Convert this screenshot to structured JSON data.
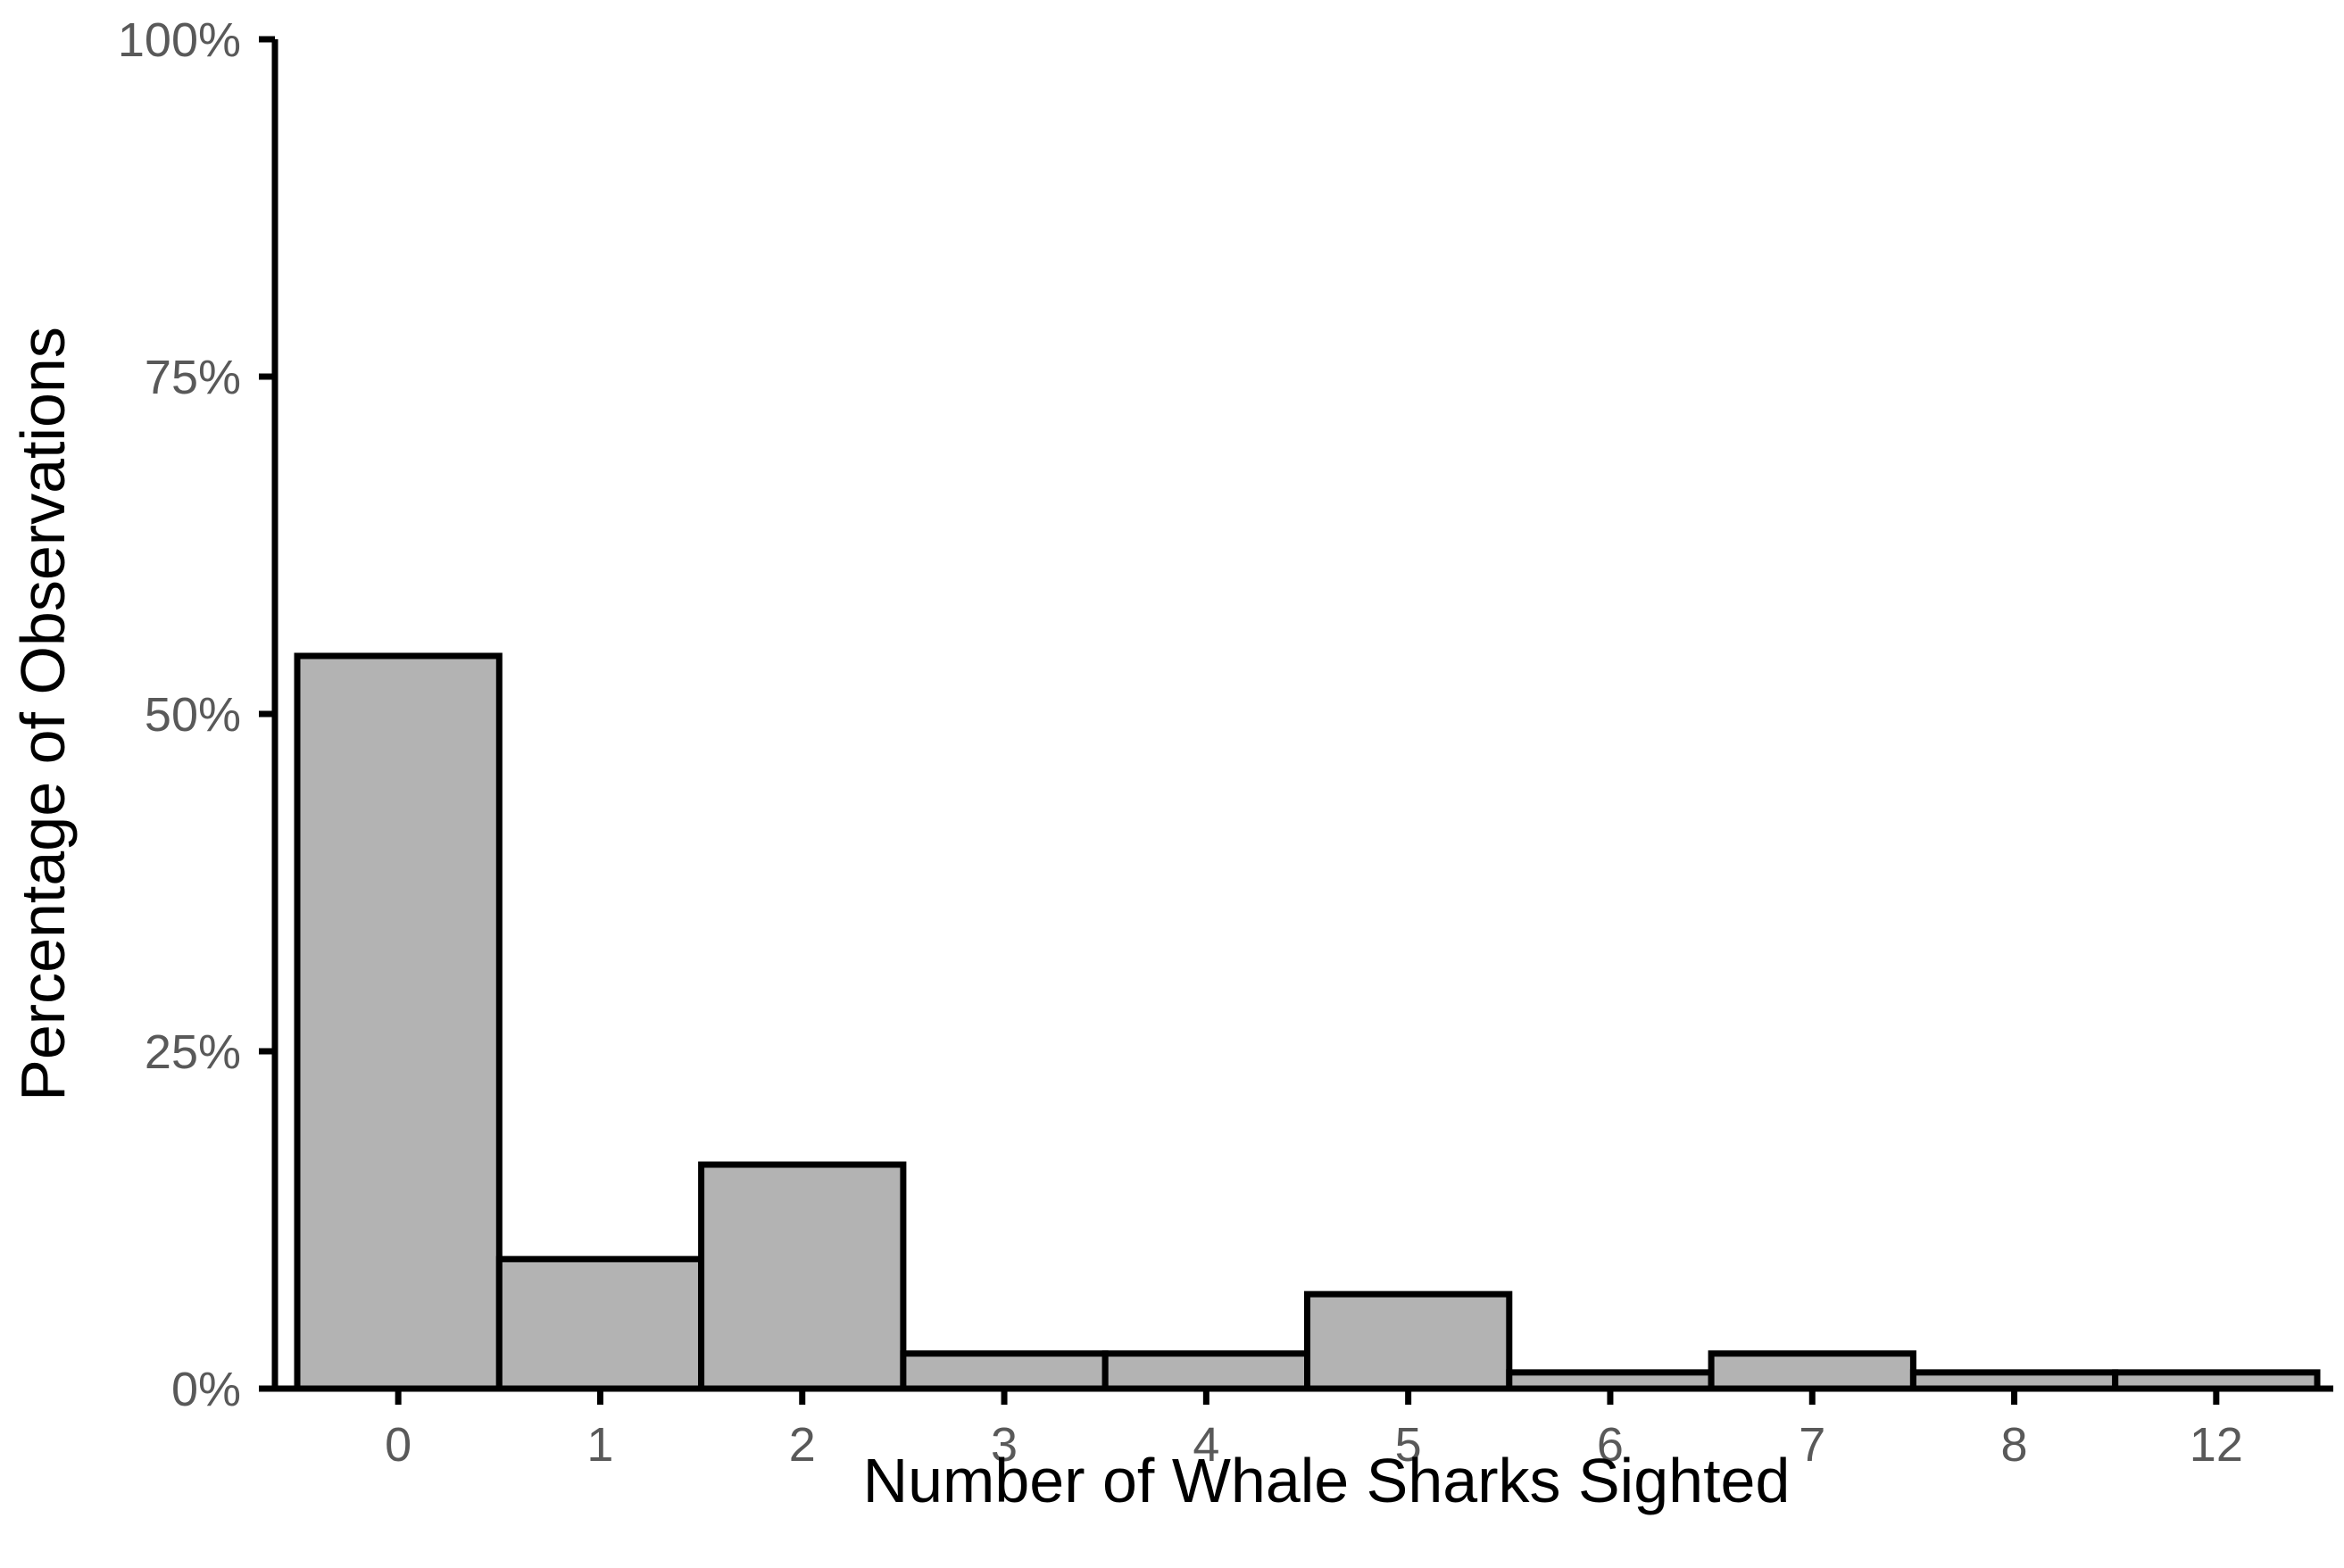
{
  "chart_data": {
    "type": "bar",
    "title": "",
    "xlabel": "Number of Whale Sharks Sighted",
    "ylabel": "Percentage of Observations",
    "categories": [
      "0",
      "1",
      "2",
      "3",
      "4",
      "5",
      "6",
      "7",
      "8",
      "12"
    ],
    "values": [
      54.3,
      9.6,
      16.6,
      2.6,
      2.6,
      7.0,
      1.2,
      2.6,
      1.2,
      1.2
    ],
    "ylim": [
      0,
      100
    ],
    "yticks": [
      0,
      25,
      50,
      75,
      100
    ],
    "ytick_labels": [
      "0%",
      "25%",
      "50%",
      "75%",
      "100%"
    ],
    "grid": false,
    "legend": "none",
    "bar_fill": "#b3b3b3",
    "bar_stroke": "#000000"
  }
}
